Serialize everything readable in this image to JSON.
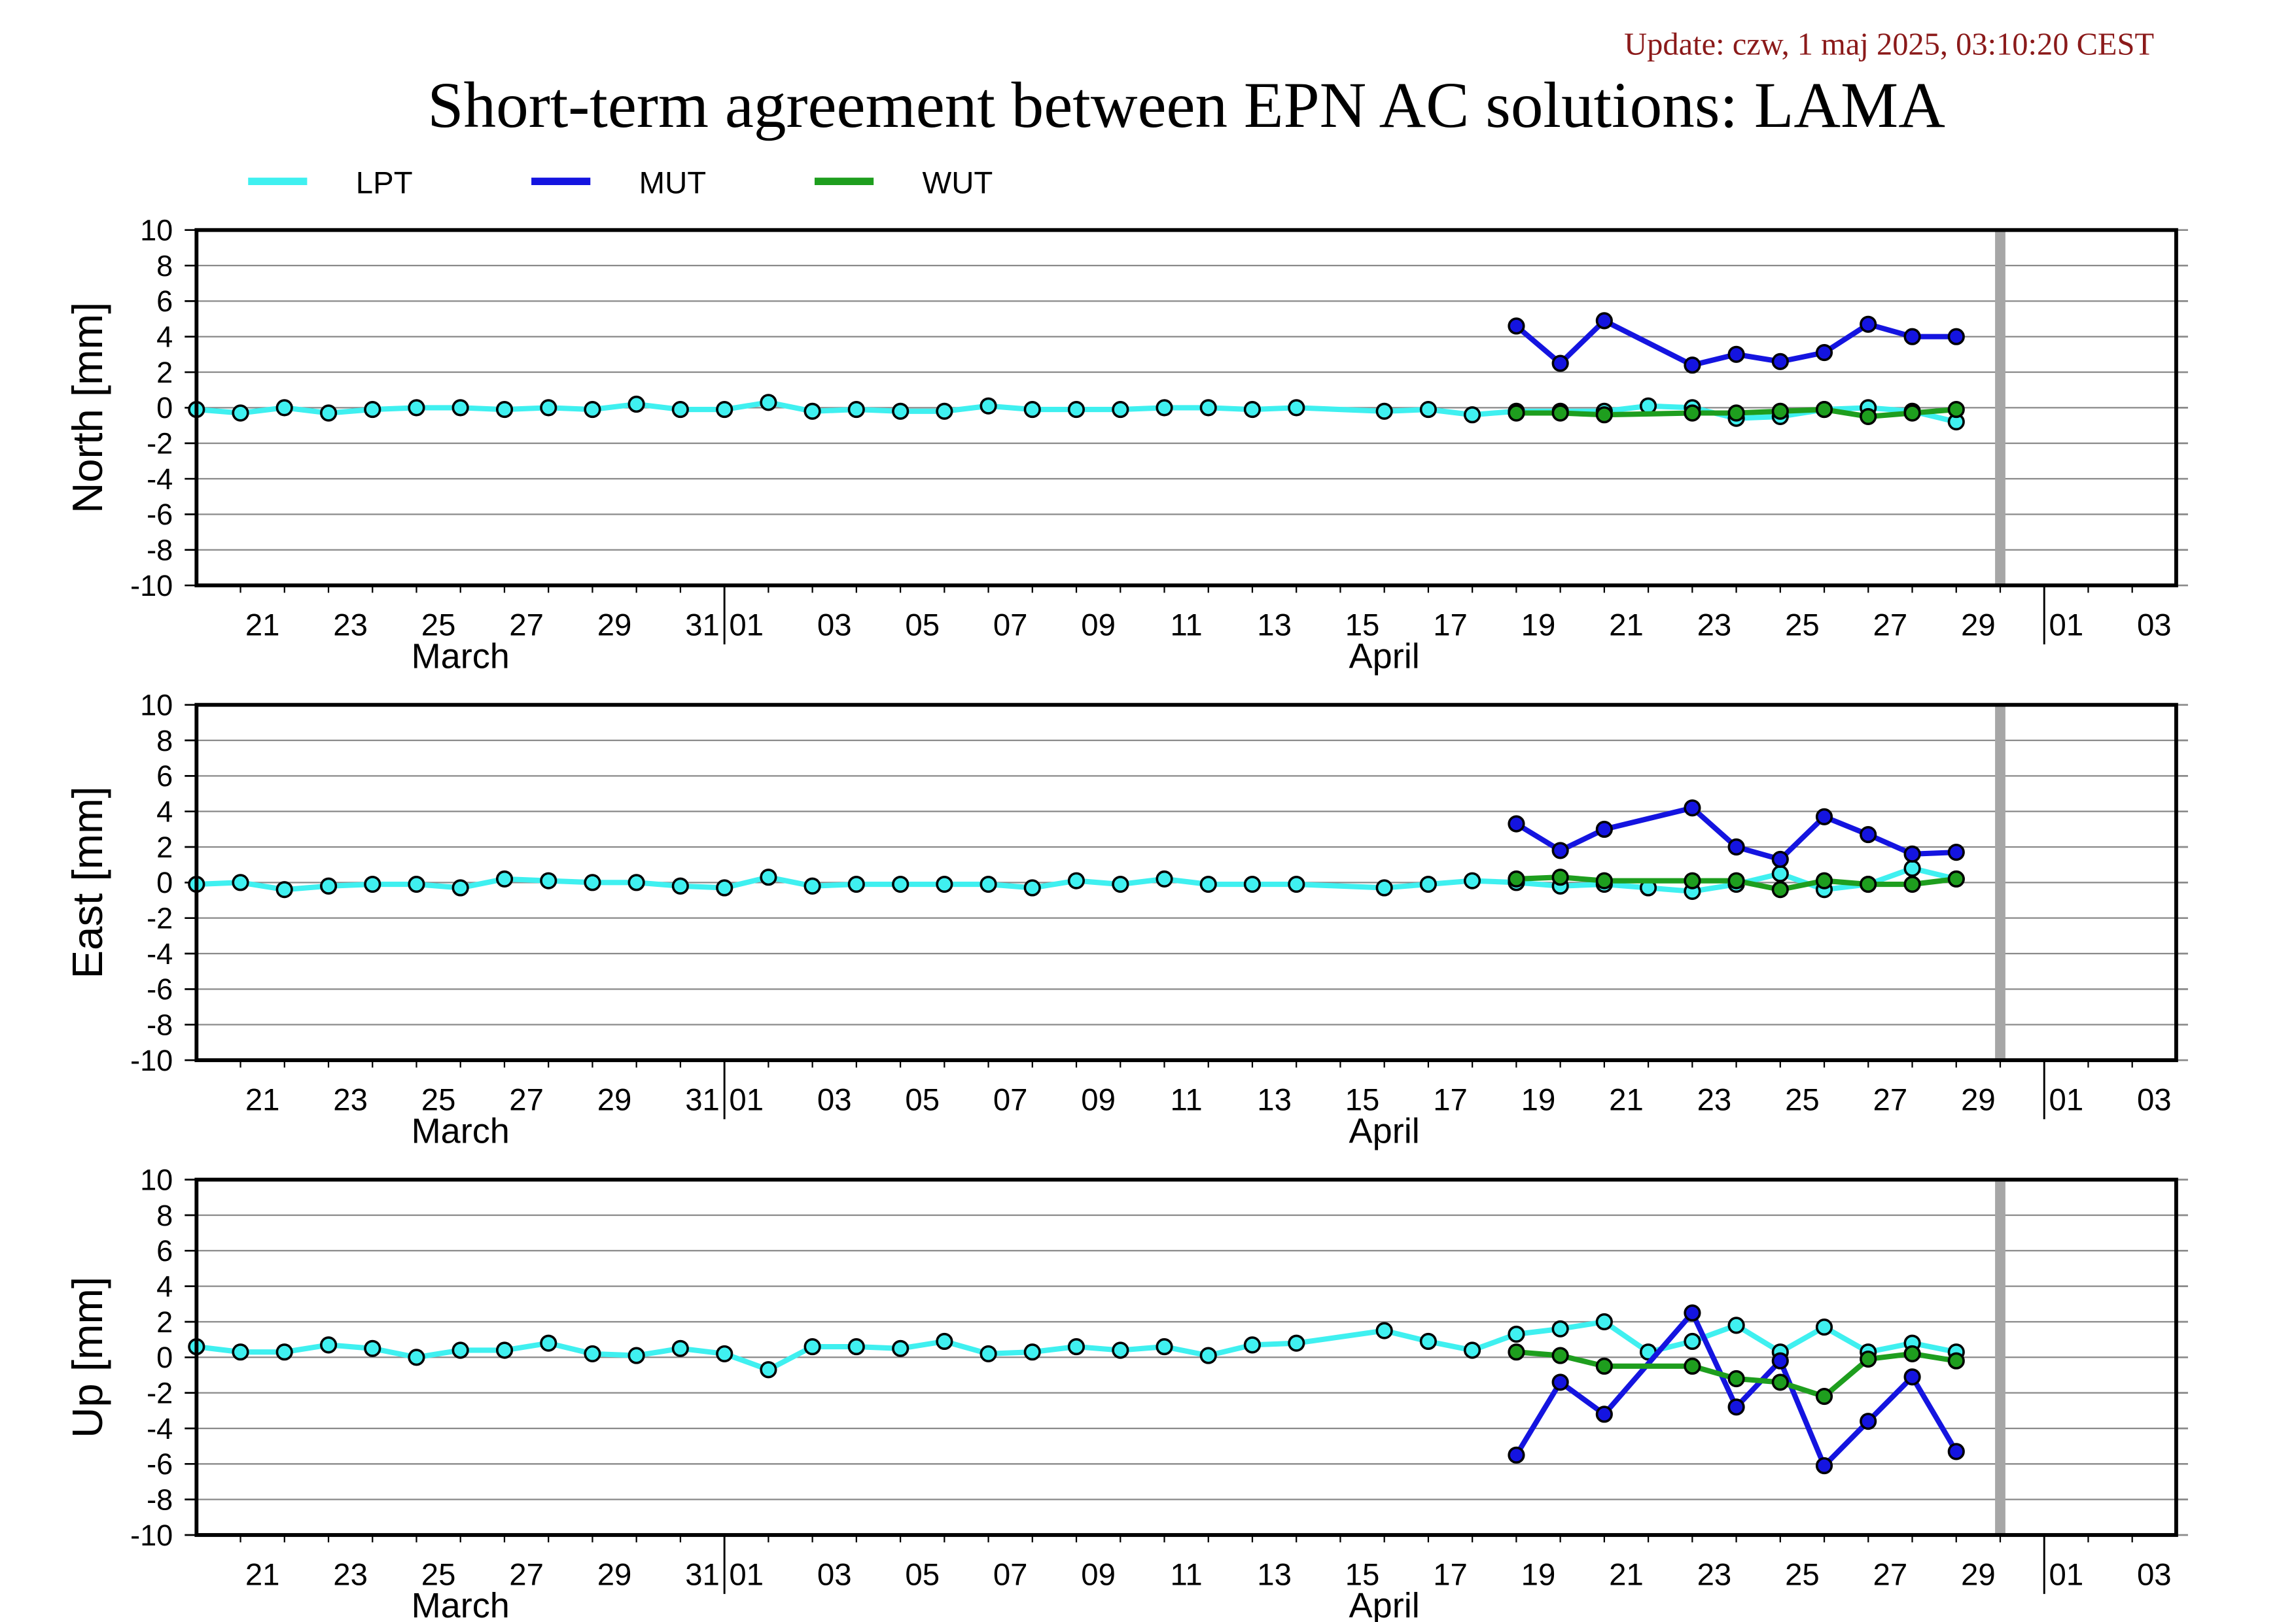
{
  "update": "Update: czw, 1 maj 2025, 03:10:20 CEST",
  "title": "Short-term agreement between EPN AC solutions: LAMA",
  "legend_position": "top-left",
  "legend": [
    {
      "name": "LPT",
      "color": "#3FF0F0"
    },
    {
      "name": "MUT",
      "color": "#1414E0"
    },
    {
      "name": "WUT",
      "color": "#1E9E1E"
    }
  ],
  "x_axis": {
    "range": [
      "2025-03-20",
      "2025-05-04"
    ],
    "ticks": [
      {
        "date": "2025-03-21",
        "label": "21"
      },
      {
        "date": "2025-03-23",
        "label": "23"
      },
      {
        "date": "2025-03-25",
        "label": "25"
      },
      {
        "date": "2025-03-27",
        "label": "27"
      },
      {
        "date": "2025-03-29",
        "label": "29"
      },
      {
        "date": "2025-03-31",
        "label": "31"
      },
      {
        "date": "2025-04-01",
        "label": "01"
      },
      {
        "date": "2025-04-03",
        "label": "03"
      },
      {
        "date": "2025-04-05",
        "label": "05"
      },
      {
        "date": "2025-04-07",
        "label": "07"
      },
      {
        "date": "2025-04-09",
        "label": "09"
      },
      {
        "date": "2025-04-11",
        "label": "11"
      },
      {
        "date": "2025-04-13",
        "label": "13"
      },
      {
        "date": "2025-04-15",
        "label": "15"
      },
      {
        "date": "2025-04-17",
        "label": "17"
      },
      {
        "date": "2025-04-19",
        "label": "19"
      },
      {
        "date": "2025-04-21",
        "label": "21"
      },
      {
        "date": "2025-04-23",
        "label": "23"
      },
      {
        "date": "2025-04-25",
        "label": "25"
      },
      {
        "date": "2025-04-27",
        "label": "27"
      },
      {
        "date": "2025-04-29",
        "label": "29"
      },
      {
        "date": "2025-05-01",
        "label": "01"
      },
      {
        "date": "2025-05-03",
        "label": "03"
      }
    ],
    "months": [
      "March",
      "April"
    ]
  },
  "reference_line": {
    "x": "2025-04-30",
    "color": "#A6A6A6"
  },
  "chart_data": [
    {
      "type": "line",
      "ylabel": "North [mm]",
      "ylim": [
        -10,
        10
      ],
      "yticks": [
        10,
        8,
        6,
        4,
        2,
        0,
        -2,
        -4,
        -6,
        -8,
        -10
      ],
      "grid": true,
      "series": [
        {
          "name": "LPT",
          "color": "#3FF0F0",
          "points": [
            [
              "2025-03-20",
              -0.1
            ],
            [
              "2025-03-21",
              -0.3
            ],
            [
              "2025-03-22",
              0.0
            ],
            [
              "2025-03-23",
              -0.3
            ],
            [
              "2025-03-24",
              -0.1
            ],
            [
              "2025-03-25",
              0.0
            ],
            [
              "2025-03-26",
              0.0
            ],
            [
              "2025-03-27",
              -0.1
            ],
            [
              "2025-03-28",
              0.0
            ],
            [
              "2025-03-29",
              -0.1
            ],
            [
              "2025-03-30",
              0.2
            ],
            [
              "2025-03-31",
              -0.1
            ],
            [
              "2025-04-01",
              -0.1
            ],
            [
              "2025-04-02",
              0.3
            ],
            [
              "2025-04-03",
              -0.2
            ],
            [
              "2025-04-04",
              -0.1
            ],
            [
              "2025-04-05",
              -0.2
            ],
            [
              "2025-04-06",
              -0.2
            ],
            [
              "2025-04-07",
              0.1
            ],
            [
              "2025-04-08",
              -0.1
            ],
            [
              "2025-04-09",
              -0.1
            ],
            [
              "2025-04-10",
              -0.1
            ],
            [
              "2025-04-11",
              0.0
            ],
            [
              "2025-04-12",
              0.0
            ],
            [
              "2025-04-13",
              -0.1
            ],
            [
              "2025-04-14",
              0.0
            ],
            [
              "2025-04-16",
              -0.2
            ],
            [
              "2025-04-17",
              -0.1
            ],
            [
              "2025-04-18",
              -0.4
            ],
            [
              "2025-04-19",
              -0.2
            ],
            [
              "2025-04-20",
              -0.2
            ],
            [
              "2025-04-21",
              -0.2
            ],
            [
              "2025-04-22",
              0.1
            ],
            [
              "2025-04-23",
              0.0
            ],
            [
              "2025-04-24",
              -0.6
            ],
            [
              "2025-04-25",
              -0.5
            ],
            [
              "2025-04-26",
              -0.1
            ],
            [
              "2025-04-27",
              0.0
            ],
            [
              "2025-04-28",
              -0.2
            ],
            [
              "2025-04-29",
              -0.8
            ]
          ]
        },
        {
          "name": "MUT",
          "color": "#1414E0",
          "points": [
            [
              "2025-04-19",
              4.6
            ],
            [
              "2025-04-20",
              2.5
            ],
            [
              "2025-04-21",
              4.9
            ],
            [
              "2025-04-23",
              2.4
            ],
            [
              "2025-04-24",
              3.0
            ],
            [
              "2025-04-25",
              2.6
            ],
            [
              "2025-04-26",
              3.1
            ],
            [
              "2025-04-27",
              4.7
            ],
            [
              "2025-04-28",
              4.0
            ],
            [
              "2025-04-29",
              4.0
            ]
          ]
        },
        {
          "name": "WUT",
          "color": "#1E9E1E",
          "points": [
            [
              "2025-04-19",
              -0.3
            ],
            [
              "2025-04-20",
              -0.3
            ],
            [
              "2025-04-21",
              -0.4
            ],
            [
              "2025-04-23",
              -0.3
            ],
            [
              "2025-04-24",
              -0.3
            ],
            [
              "2025-04-25",
              -0.2
            ],
            [
              "2025-04-26",
              -0.1
            ],
            [
              "2025-04-27",
              -0.5
            ],
            [
              "2025-04-28",
              -0.3
            ],
            [
              "2025-04-29",
              -0.1
            ]
          ]
        }
      ]
    },
    {
      "type": "line",
      "ylabel": "East [mm]",
      "ylim": [
        -10,
        10
      ],
      "yticks": [
        10,
        8,
        6,
        4,
        2,
        0,
        -2,
        -4,
        -6,
        -8,
        -10
      ],
      "grid": true,
      "series": [
        {
          "name": "LPT",
          "color": "#3FF0F0",
          "points": [
            [
              "2025-03-20",
              -0.1
            ],
            [
              "2025-03-21",
              0.0
            ],
            [
              "2025-03-22",
              -0.4
            ],
            [
              "2025-03-23",
              -0.2
            ],
            [
              "2025-03-24",
              -0.1
            ],
            [
              "2025-03-25",
              -0.1
            ],
            [
              "2025-03-26",
              -0.3
            ],
            [
              "2025-03-27",
              0.2
            ],
            [
              "2025-03-28",
              0.1
            ],
            [
              "2025-03-29",
              0.0
            ],
            [
              "2025-03-30",
              0.0
            ],
            [
              "2025-03-31",
              -0.2
            ],
            [
              "2025-04-01",
              -0.3
            ],
            [
              "2025-04-02",
              0.3
            ],
            [
              "2025-04-03",
              -0.2
            ],
            [
              "2025-04-04",
              -0.1
            ],
            [
              "2025-04-05",
              -0.1
            ],
            [
              "2025-04-06",
              -0.1
            ],
            [
              "2025-04-07",
              -0.1
            ],
            [
              "2025-04-08",
              -0.3
            ],
            [
              "2025-04-09",
              0.1
            ],
            [
              "2025-04-10",
              -0.1
            ],
            [
              "2025-04-11",
              0.2
            ],
            [
              "2025-04-12",
              -0.1
            ],
            [
              "2025-04-13",
              -0.1
            ],
            [
              "2025-04-14",
              -0.1
            ],
            [
              "2025-04-16",
              -0.3
            ],
            [
              "2025-04-17",
              -0.1
            ],
            [
              "2025-04-18",
              0.1
            ],
            [
              "2025-04-19",
              0.0
            ],
            [
              "2025-04-20",
              -0.2
            ],
            [
              "2025-04-21",
              -0.1
            ],
            [
              "2025-04-22",
              -0.3
            ],
            [
              "2025-04-23",
              -0.5
            ],
            [
              "2025-04-24",
              -0.1
            ],
            [
              "2025-04-25",
              0.5
            ],
            [
              "2025-04-26",
              -0.4
            ],
            [
              "2025-04-27",
              -0.1
            ],
            [
              "2025-04-28",
              0.8
            ],
            [
              "2025-04-29",
              0.2
            ]
          ]
        },
        {
          "name": "MUT",
          "color": "#1414E0",
          "points": [
            [
              "2025-04-19",
              3.3
            ],
            [
              "2025-04-20",
              1.8
            ],
            [
              "2025-04-21",
              3.0
            ],
            [
              "2025-04-23",
              4.2
            ],
            [
              "2025-04-24",
              2.0
            ],
            [
              "2025-04-25",
              1.3
            ],
            [
              "2025-04-26",
              3.7
            ],
            [
              "2025-04-27",
              2.7
            ],
            [
              "2025-04-28",
              1.6
            ],
            [
              "2025-04-29",
              1.7
            ]
          ]
        },
        {
          "name": "WUT",
          "color": "#1E9E1E",
          "points": [
            [
              "2025-04-19",
              0.2
            ],
            [
              "2025-04-20",
              0.3
            ],
            [
              "2025-04-21",
              0.1
            ],
            [
              "2025-04-23",
              0.1
            ],
            [
              "2025-04-24",
              0.1
            ],
            [
              "2025-04-25",
              -0.4
            ],
            [
              "2025-04-26",
              0.1
            ],
            [
              "2025-04-27",
              -0.1
            ],
            [
              "2025-04-28",
              -0.1
            ],
            [
              "2025-04-29",
              0.2
            ]
          ]
        }
      ]
    },
    {
      "type": "line",
      "ylabel": "Up [mm]",
      "ylim": [
        -10,
        10
      ],
      "yticks": [
        10,
        8,
        6,
        4,
        2,
        0,
        -2,
        -4,
        -6,
        -8,
        -10
      ],
      "grid": true,
      "series": [
        {
          "name": "LPT",
          "color": "#3FF0F0",
          "points": [
            [
              "2025-03-20",
              0.6
            ],
            [
              "2025-03-21",
              0.3
            ],
            [
              "2025-03-22",
              0.3
            ],
            [
              "2025-03-23",
              0.7
            ],
            [
              "2025-03-24",
              0.5
            ],
            [
              "2025-03-25",
              0.0
            ],
            [
              "2025-03-26",
              0.4
            ],
            [
              "2025-03-27",
              0.4
            ],
            [
              "2025-03-28",
              0.8
            ],
            [
              "2025-03-29",
              0.2
            ],
            [
              "2025-03-30",
              0.1
            ],
            [
              "2025-03-31",
              0.5
            ],
            [
              "2025-04-01",
              0.2
            ],
            [
              "2025-04-02",
              -0.7
            ],
            [
              "2025-04-03",
              0.6
            ],
            [
              "2025-04-04",
              0.6
            ],
            [
              "2025-04-05",
              0.5
            ],
            [
              "2025-04-06",
              0.9
            ],
            [
              "2025-04-07",
              0.2
            ],
            [
              "2025-04-08",
              0.3
            ],
            [
              "2025-04-09",
              0.6
            ],
            [
              "2025-04-10",
              0.4
            ],
            [
              "2025-04-11",
              0.6
            ],
            [
              "2025-04-12",
              0.1
            ],
            [
              "2025-04-13",
              0.7
            ],
            [
              "2025-04-14",
              0.8
            ],
            [
              "2025-04-16",
              1.5
            ],
            [
              "2025-04-17",
              0.9
            ],
            [
              "2025-04-18",
              0.4
            ],
            [
              "2025-04-19",
              1.3
            ],
            [
              "2025-04-20",
              1.6
            ],
            [
              "2025-04-21",
              2.0
            ],
            [
              "2025-04-22",
              0.3
            ],
            [
              "2025-04-23",
              0.9
            ],
            [
              "2025-04-24",
              1.8
            ],
            [
              "2025-04-25",
              0.3
            ],
            [
              "2025-04-26",
              1.7
            ],
            [
              "2025-04-27",
              0.3
            ],
            [
              "2025-04-28",
              0.8
            ],
            [
              "2025-04-29",
              0.3
            ]
          ]
        },
        {
          "name": "MUT",
          "color": "#1414E0",
          "points": [
            [
              "2025-04-19",
              -5.5
            ],
            [
              "2025-04-20",
              -1.4
            ],
            [
              "2025-04-21",
              -3.2
            ],
            [
              "2025-04-23",
              2.5
            ],
            [
              "2025-04-24",
              -2.8
            ],
            [
              "2025-04-25",
              -0.2
            ],
            [
              "2025-04-26",
              -6.1
            ],
            [
              "2025-04-27",
              -3.6
            ],
            [
              "2025-04-28",
              -1.1
            ],
            [
              "2025-04-29",
              -5.3
            ]
          ]
        },
        {
          "name": "WUT",
          "color": "#1E9E1E",
          "points": [
            [
              "2025-04-19",
              0.3
            ],
            [
              "2025-04-20",
              0.1
            ],
            [
              "2025-04-21",
              -0.5
            ],
            [
              "2025-04-23",
              -0.5
            ],
            [
              "2025-04-24",
              -1.2
            ],
            [
              "2025-04-25",
              -1.4
            ],
            [
              "2025-04-26",
              -2.2
            ],
            [
              "2025-04-27",
              -0.1
            ],
            [
              "2025-04-28",
              0.2
            ],
            [
              "2025-04-29",
              -0.2
            ]
          ]
        }
      ]
    }
  ]
}
